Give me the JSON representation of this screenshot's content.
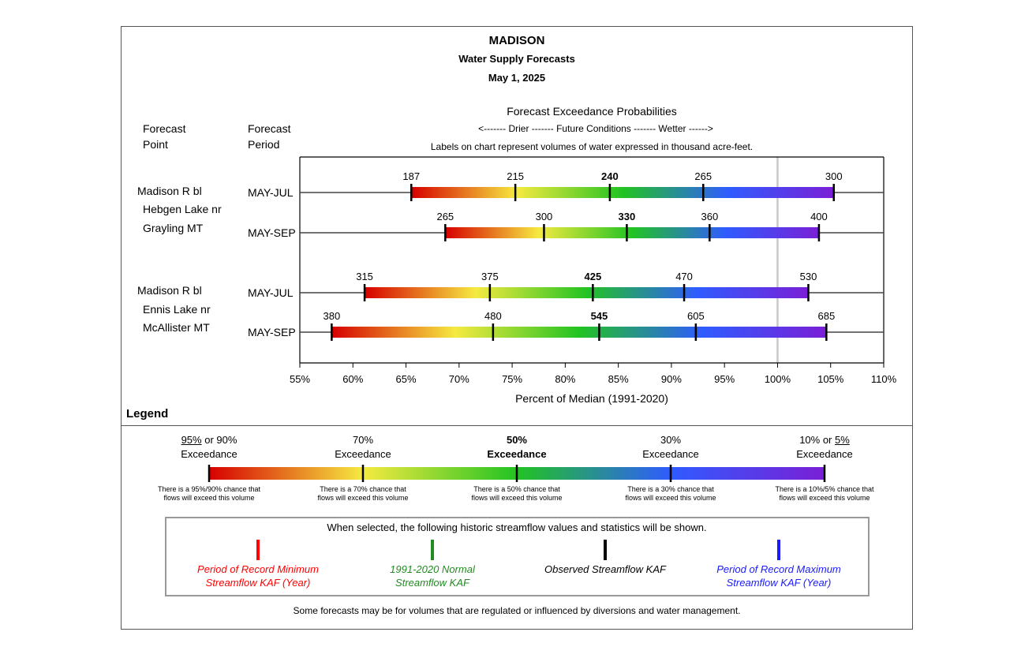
{
  "header": {
    "title": "MADISON",
    "subtitle": "Water Supply Forecasts",
    "date": "May 1, 2025",
    "probabilities_title": "Forecast Exceedance Probabilities",
    "direction_line": "<------- Drier ------- Future Conditions ------- Wetter ------>",
    "labels_note": "Labels on chart represent volumes of water expressed in thousand acre-feet.",
    "col_point_1": "Forecast",
    "col_point_2": "Point",
    "col_period_1": "Forecast",
    "col_period_2": "Period"
  },
  "chart_data": {
    "type": "bar",
    "xlabel": "Percent of Median (1991-2020)",
    "xlim": [
      55,
      110
    ],
    "xticks": [
      "55%",
      "60%",
      "65%",
      "70%",
      "75%",
      "80%",
      "85%",
      "90%",
      "95%",
      "100%",
      "105%",
      "110%"
    ],
    "reference_line_pct": 100,
    "color_scale": [
      "#d60000",
      "#f5ea40",
      "#22c322",
      "#2f5cff",
      "#7a1fd6"
    ],
    "points": [
      {
        "name_lines": [
          "Madison R bl",
          "Hebgen Lake nr",
          "Grayling MT"
        ],
        "periods": [
          {
            "period": "MAY-JUL",
            "pcts": [
              65.5,
              75.3,
              84.2,
              93.0,
              105.3
            ],
            "labels": [
              "187",
              "215",
              "240",
              "265",
              "300"
            ]
          },
          {
            "period": "MAY-SEP",
            "pcts": [
              68.7,
              78.0,
              85.8,
              93.6,
              103.9
            ],
            "labels": [
              "265",
              "300",
              "330",
              "360",
              "400"
            ]
          }
        ]
      },
      {
        "name_lines": [
          "Madison R bl",
          "Ennis Lake nr",
          "McAllister MT"
        ],
        "periods": [
          {
            "period": "MAY-JUL",
            "pcts": [
              61.1,
              72.9,
              82.6,
              91.2,
              102.9
            ],
            "labels": [
              "315",
              "375",
              "425",
              "470",
              "530"
            ]
          },
          {
            "period": "MAY-SEP",
            "pcts": [
              58.0,
              73.2,
              83.2,
              92.3,
              104.6
            ],
            "labels": [
              "380",
              "480",
              "545",
              "605",
              "685"
            ]
          }
        ]
      }
    ]
  },
  "legend": {
    "title": "Legend",
    "items": [
      {
        "pct_prefix": "",
        "pct_u1": "95%",
        "pct_mid": " or 90%",
        "pct_u2": "",
        "word": "Exceedance",
        "note1": "There is a 95%/90% chance that",
        "note2": "flows will exceed this volume",
        "bold": false
      },
      {
        "pct_prefix": "70%",
        "pct_u1": "",
        "pct_mid": "",
        "pct_u2": "",
        "word": "Exceedance",
        "note1": "There is a 70% chance that",
        "note2": "flows will exceed this volume",
        "bold": false
      },
      {
        "pct_prefix": "50%",
        "pct_u1": "",
        "pct_mid": "",
        "pct_u2": "",
        "word": "Exceedance",
        "note1": "There is a 50% chance that",
        "note2": "flows will exceed this volume",
        "bold": true
      },
      {
        "pct_prefix": "30%",
        "pct_u1": "",
        "pct_mid": "",
        "pct_u2": "",
        "word": "Exceedance",
        "note1": "There is a 30% chance that",
        "note2": "flows will exceed this volume",
        "bold": false
      },
      {
        "pct_prefix": "10% or ",
        "pct_u1": "",
        "pct_mid": "",
        "pct_u2": "5%",
        "word": "Exceedance",
        "note1": "There is a 10%/5% chance that",
        "note2": "flows will exceed this volume",
        "bold": false
      }
    ]
  },
  "historic": {
    "intro": "When selected, the following historic streamflow values and statistics will be shown.",
    "items": [
      {
        "line1": "Period of Record Minimum",
        "line2": "Streamflow KAF (Year)",
        "color": "#ff0000"
      },
      {
        "line1": "1991-2020 Normal",
        "line2": "Streamflow KAF",
        "color": "#228b22"
      },
      {
        "line1": "Observed Streamflow KAF",
        "line2": "",
        "color": "#000000"
      },
      {
        "line1": "Period of Record Maximum",
        "line2": "Streamflow KAF (Year)",
        "color": "#1a1aff"
      }
    ]
  },
  "footer": "Some forecasts may be for volumes that are regulated or influenced by diversions and water management."
}
